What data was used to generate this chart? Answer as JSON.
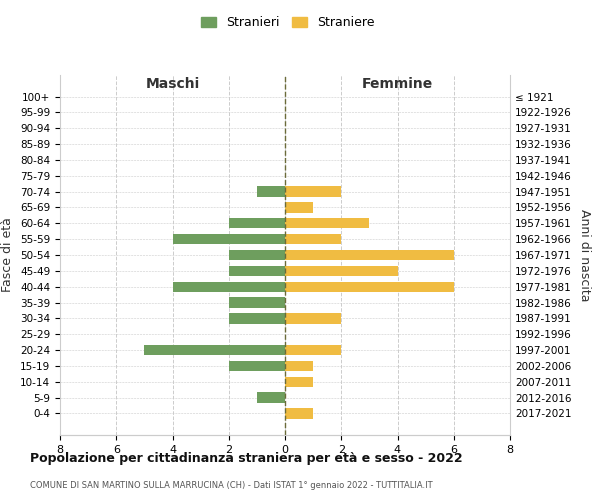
{
  "age_groups": [
    "100+",
    "95-99",
    "90-94",
    "85-89",
    "80-84",
    "75-79",
    "70-74",
    "65-69",
    "60-64",
    "55-59",
    "50-54",
    "45-49",
    "40-44",
    "35-39",
    "30-34",
    "25-29",
    "20-24",
    "15-19",
    "10-14",
    "5-9",
    "0-4"
  ],
  "birth_years": [
    "≤ 1921",
    "1922-1926",
    "1927-1931",
    "1932-1936",
    "1937-1941",
    "1942-1946",
    "1947-1951",
    "1952-1956",
    "1957-1961",
    "1962-1966",
    "1967-1971",
    "1972-1976",
    "1977-1981",
    "1982-1986",
    "1987-1991",
    "1992-1996",
    "1997-2001",
    "2002-2006",
    "2007-2011",
    "2012-2016",
    "2017-2021"
  ],
  "maschi": [
    0,
    0,
    0,
    0,
    0,
    0,
    1,
    0,
    2,
    4,
    2,
    2,
    4,
    2,
    2,
    0,
    5,
    2,
    0,
    1,
    0
  ],
  "femmine": [
    0,
    0,
    0,
    0,
    0,
    0,
    2,
    1,
    3,
    2,
    6,
    4,
    6,
    0,
    2,
    0,
    2,
    1,
    1,
    0,
    1
  ],
  "color_maschi": "#6e9e5e",
  "color_femmine": "#f0bc42",
  "title": "Popolazione per cittadinanza straniera per età e sesso - 2022",
  "subtitle": "COMUNE DI SAN MARTINO SULLA MARRUCINA (CH) - Dati ISTAT 1° gennaio 2022 - TUTTITALIA.IT",
  "xlabel_left": "Maschi",
  "xlabel_right": "Femmine",
  "ylabel_left": "Fasce di età",
  "ylabel_right": "Anni di nascita",
  "legend_maschi": "Stranieri",
  "legend_femmine": "Straniere",
  "xlim": 8,
  "background_color": "#ffffff",
  "grid_color": "#cccccc",
  "centerline_color": "#6b6b3a"
}
